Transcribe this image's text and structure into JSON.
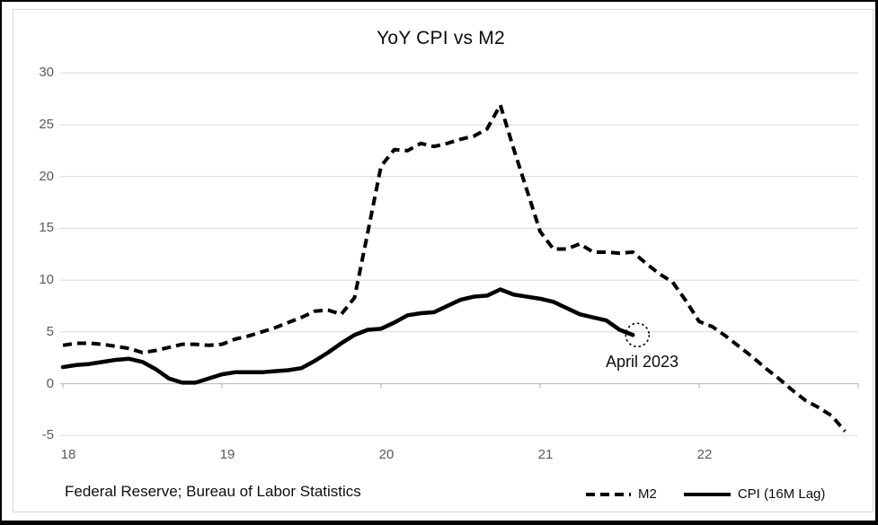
{
  "title": "YoY CPI vs M2",
  "source_note": "Federal Reserve; Bureau of Labor Statistics",
  "annotation": {
    "label": "April 2023",
    "series": "CPI (16M Lag)",
    "marker": "dotted-circle-on-last-cpi-point"
  },
  "legend": [
    {
      "name": "M2",
      "style": "dashed"
    },
    {
      "name": "CPI (16M Lag)",
      "style": "solid"
    }
  ],
  "colors": {
    "line": "#000000",
    "gridline": "#d9d9d9",
    "zero_axis": "#bfbfbf",
    "tick_label": "#595959",
    "text": "#0d0d0d",
    "outer_border": "#000000",
    "chart_border": "#d9d9d9",
    "background": "#ffffff"
  },
  "chart_data": {
    "type": "line",
    "title": "YoY CPI vs M2",
    "xlabel": "",
    "ylabel": "",
    "grid": "horizontal",
    "legend_position": "bottom-right",
    "ylim": [
      -5,
      30
    ],
    "y_ticks": [
      30,
      25,
      20,
      15,
      10,
      5,
      0,
      -5
    ],
    "x_tick_labels": [
      "18",
      "19",
      "20",
      "21",
      "22"
    ],
    "x_tick_months": [
      0,
      12,
      24,
      36,
      48
    ],
    "x_unit": "months since start (monthly data, 12 months per axis year)",
    "series": [
      {
        "name": "M2",
        "style": "dashed",
        "start_month": 0,
        "values": [
          3.7,
          3.9,
          3.9,
          3.8,
          3.6,
          3.4,
          3.0,
          3.2,
          3.5,
          3.8,
          3.8,
          3.7,
          3.8,
          4.3,
          4.6,
          5.0,
          5.4,
          5.9,
          6.4,
          7.0,
          7.1,
          6.7,
          8.3,
          14.6,
          21.0,
          22.6,
          22.5,
          23.2,
          22.9,
          23.2,
          23.6,
          23.9,
          24.6,
          26.9,
          22.7,
          18.7,
          14.7,
          13.0,
          13.0,
          13.5,
          12.7,
          12.7,
          12.6,
          12.7,
          11.6,
          10.6,
          9.8,
          8.0,
          6.0,
          5.5,
          4.6,
          3.6,
          2.6,
          1.5,
          0.5,
          -0.6,
          -1.6,
          -2.3,
          -3.1,
          -4.6
        ]
      },
      {
        "name": "CPI (16M Lag)",
        "style": "solid",
        "start_month": 0,
        "values": [
          1.6,
          1.8,
          1.9,
          2.1,
          2.3,
          2.4,
          2.1,
          1.4,
          0.5,
          0.1,
          0.1,
          0.5,
          0.9,
          1.1,
          1.1,
          1.1,
          1.2,
          1.3,
          1.5,
          2.2,
          3.0,
          3.9,
          4.7,
          5.2,
          5.3,
          5.9,
          6.6,
          6.8,
          6.9,
          7.5,
          8.1,
          8.4,
          8.5,
          9.1,
          8.6,
          8.4,
          8.2,
          7.9,
          7.3,
          6.7,
          6.4,
          6.1,
          5.2,
          4.7
        ]
      }
    ]
  }
}
